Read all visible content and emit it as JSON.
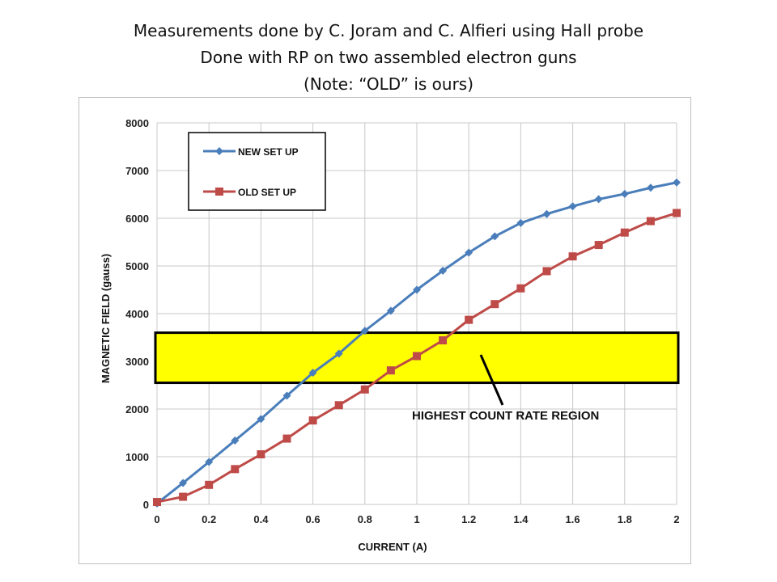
{
  "header": {
    "lines": [
      "Measurements done by C. Joram and C. Alfieri using Hall probe",
      "Done with RP on two assembled electron guns",
      "(Note: “OLD” is ours)"
    ]
  },
  "chart_data": {
    "type": "line",
    "xlabel": "CURRENT  (A)",
    "ylabel": "MAGNETIC  FIELD (gauss)",
    "xlim": [
      0,
      2
    ],
    "ylim": [
      0,
      8000
    ],
    "xticks": [
      0,
      0.2,
      0.4,
      0.6,
      0.8,
      1,
      1.2,
      1.4,
      1.6,
      1.8,
      2
    ],
    "xtick_labels": [
      "0",
      "0.2",
      "0.4",
      "0.6",
      "0.8",
      "1",
      "1.2",
      "1.4",
      "1.6",
      "1.8",
      "2"
    ],
    "yticks": [
      0,
      1000,
      2000,
      3000,
      4000,
      5000,
      6000,
      7000,
      8000
    ],
    "ytick_labels": [
      "0",
      "1000",
      "2000",
      "3000",
      "4000",
      "5000",
      "6000",
      "7000",
      "8000"
    ],
    "grid": true,
    "legend_position": "top-left",
    "x": [
      0,
      0.1,
      0.2,
      0.3,
      0.4,
      0.5,
      0.6,
      0.7,
      0.8,
      0.9,
      1.0,
      1.1,
      1.2,
      1.3,
      1.4,
      1.5,
      1.6,
      1.7,
      1.8,
      1.9,
      2.0
    ],
    "series": [
      {
        "name": "NEW SET UP",
        "color": "#4a7ebb",
        "marker": "diamond",
        "values": [
          20,
          450,
          890,
          1340,
          1790,
          2280,
          2760,
          3160,
          3640,
          4060,
          4500,
          4900,
          5280,
          5620,
          5900,
          6090,
          6250,
          6400,
          6510,
          6640,
          6750
        ]
      },
      {
        "name": "OLD SET UP",
        "color": "#be4b48",
        "marker": "square",
        "values": [
          50,
          160,
          410,
          740,
          1050,
          1380,
          1760,
          2080,
          2410,
          2810,
          3110,
          3440,
          3870,
          4200,
          4530,
          4890,
          5200,
          5440,
          5700,
          5940,
          6110
        ]
      }
    ],
    "highlight_band": {
      "y_range": [
        2550,
        3600
      ],
      "color": "#ffff00",
      "label": "HIGHEST COUNT RATE REGION"
    }
  }
}
